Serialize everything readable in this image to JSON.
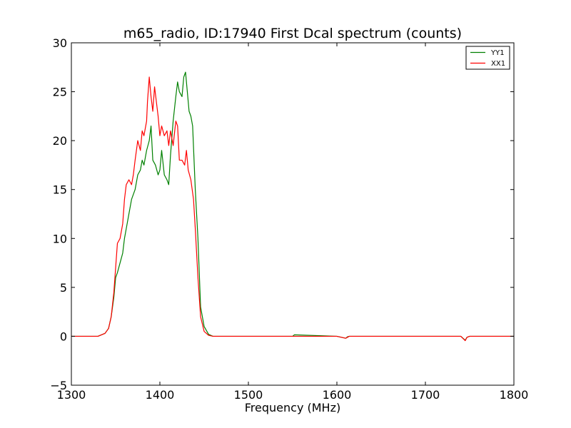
{
  "chart_data": {
    "type": "line",
    "title": "m65_radio, ID:17940 First Dcal spectrum (counts)",
    "xlabel": "Frequency (MHz)",
    "ylabel": "",
    "xlim": [
      1300,
      1800
    ],
    "ylim": [
      -5,
      30
    ],
    "xticks": [
      1300,
      1400,
      1500,
      1600,
      1700,
      1800
    ],
    "yticks": [
      -5,
      0,
      5,
      10,
      15,
      20,
      25,
      30
    ],
    "xtick_labels": [
      "1300",
      "1400",
      "1500",
      "1600",
      "1700",
      "1800"
    ],
    "ytick_labels": [
      "−5",
      "0",
      "5",
      "10",
      "15",
      "20",
      "25",
      "30"
    ],
    "legend_position": "top-right",
    "grid": false,
    "series": [
      {
        "name": "YY1",
        "color": "#008000",
        "x": [
          1300,
          1330,
          1338,
          1342,
          1345,
          1348,
          1350,
          1352,
          1355,
          1358,
          1360,
          1362,
          1365,
          1368,
          1370,
          1372,
          1375,
          1378,
          1380,
          1382,
          1385,
          1388,
          1390,
          1392,
          1395,
          1398,
          1400,
          1402,
          1405,
          1408,
          1410,
          1412,
          1415,
          1418,
          1420,
          1422,
          1425,
          1427,
          1429,
          1431,
          1433,
          1435,
          1437,
          1440,
          1443,
          1446,
          1450,
          1455,
          1460,
          1470,
          1500,
          1550,
          1552,
          1600,
          1610,
          1612,
          1614,
          1650,
          1700,
          1740,
          1745,
          1747,
          1750,
          1800
        ],
        "y": [
          0,
          0,
          0.3,
          0.8,
          2,
          4,
          6,
          6.5,
          7.5,
          8.5,
          10,
          11,
          12.5,
          14,
          14.5,
          15,
          16.5,
          17,
          18,
          17.5,
          19,
          20,
          21.5,
          18,
          17.5,
          16.5,
          17,
          19,
          16.5,
          16,
          15.5,
          18.5,
          22,
          24.5,
          26,
          25,
          24.5,
          26.5,
          27,
          25,
          23,
          22.5,
          21.5,
          15,
          10,
          3,
          1,
          0.2,
          0,
          0,
          0,
          0,
          0.15,
          0,
          -0.2,
          -0.05,
          0,
          0,
          0,
          0,
          -0.4,
          -0.1,
          0,
          0
        ]
      },
      {
        "name": "XX1",
        "color": "#ff0000",
        "x": [
          1300,
          1330,
          1338,
          1342,
          1345,
          1348,
          1350,
          1352,
          1355,
          1358,
          1360,
          1362,
          1365,
          1368,
          1370,
          1372,
          1375,
          1378,
          1380,
          1382,
          1385,
          1386,
          1388,
          1390,
          1392,
          1394,
          1396,
          1398,
          1400,
          1402,
          1405,
          1408,
          1410,
          1412,
          1415,
          1418,
          1420,
          1422,
          1425,
          1428,
          1430,
          1432,
          1435,
          1438,
          1440,
          1443,
          1446,
          1450,
          1455,
          1460,
          1470,
          1500,
          1600,
          1610,
          1612,
          1614,
          1650,
          1700,
          1740,
          1745,
          1747,
          1750,
          1800
        ],
        "y": [
          0,
          0,
          0.3,
          0.8,
          2,
          4.5,
          7,
          9.5,
          10,
          11.5,
          14,
          15.5,
          16,
          15.5,
          16.5,
          18,
          20,
          19,
          21,
          20.5,
          22,
          24,
          26.5,
          24.5,
          23,
          25.5,
          24,
          22.5,
          20.5,
          21.5,
          20.5,
          21,
          19.5,
          21,
          19.5,
          22,
          21.5,
          18,
          18,
          17.5,
          19,
          17,
          16,
          14,
          11,
          6,
          2,
          0.5,
          0.1,
          0,
          0,
          0,
          0,
          -0.2,
          -0.1,
          0,
          0,
          0,
          0,
          -0.45,
          -0.1,
          0,
          0
        ]
      }
    ]
  }
}
